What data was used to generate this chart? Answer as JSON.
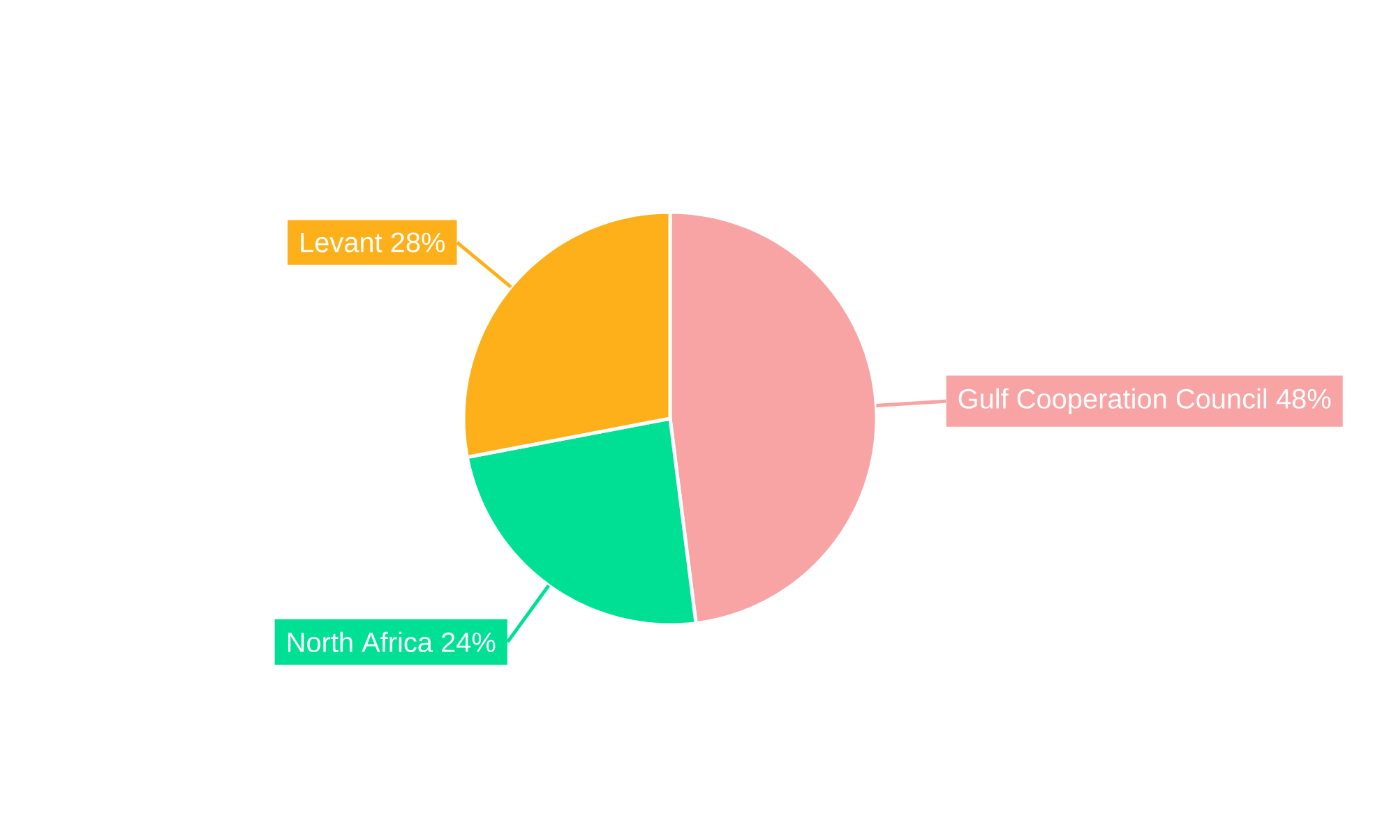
{
  "chart_data": {
    "type": "pie",
    "categories": [
      "Gulf Cooperation Council",
      "North Africa",
      "Levant"
    ],
    "values": [
      48,
      24,
      28
    ],
    "colors": [
      "#f8a4a4",
      "#00e095",
      "#fdb01a"
    ],
    "value_labels": [
      "48%",
      "24%",
      "28%"
    ]
  }
}
